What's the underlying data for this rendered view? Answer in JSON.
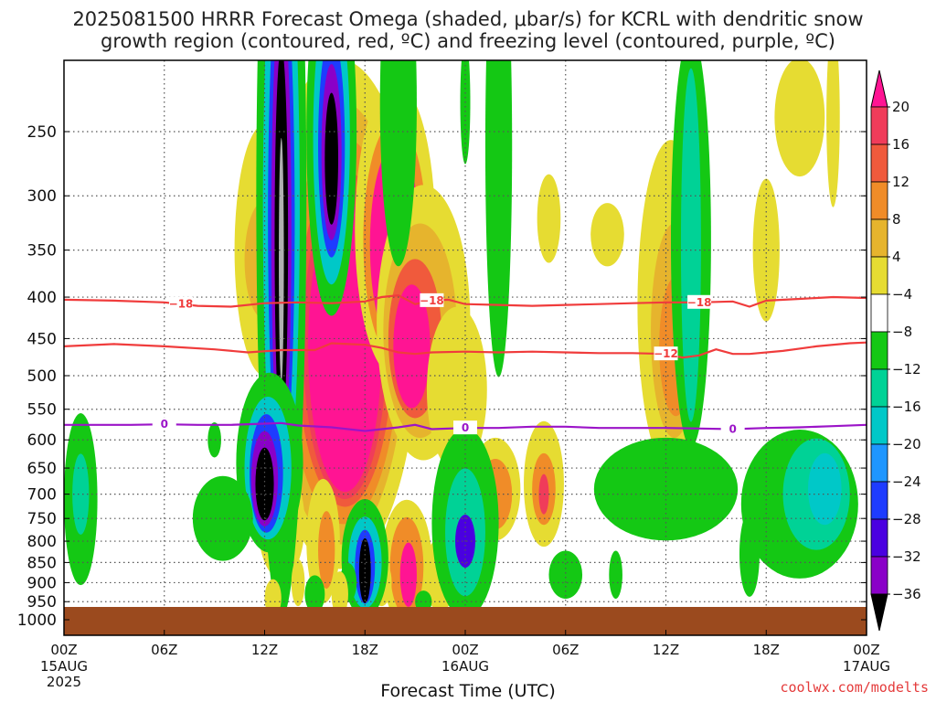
{
  "title": {
    "line1": "2025081500 HRRR Forecast Omega (shaded, μbar/s) for KCRL with dendritic snow",
    "line2": "growth region (contoured, red, ºC) and freezing level (contoured, purple, ºC)"
  },
  "xaxis_title": "Forecast Time (UTC)",
  "credit": "coolwx.com/modelts",
  "colors": {
    "rising_strong": "#000000",
    "rising_32": "#b0b0b0",
    "rising_28": "#8a00c8",
    "rising_24": "#4a00e0",
    "rising_20": "#1e3cff",
    "rising_16": "#1e96ff",
    "rising_12": "#00c8c8",
    "rising_8": "#00d296",
    "rising_4": "#14c814",
    "neutral": "#ffffff",
    "sinking_4": "#e6dc32",
    "sinking_8": "#e6b42d",
    "sinking_12": "#f08c28",
    "sinking_16": "#f05a3c",
    "sinking_20": "#f03c5a",
    "sinking_max": "#ff1493",
    "dgz_contour": "#f03c3c",
    "freezing_contour": "#9b14c8",
    "ground": "#9b4a1e"
  },
  "chart_data": {
    "type": "heatmap",
    "title": "2025081500 HRRR Forecast Omega (shaded, μbar/s) for KCRL with dendritic snow growth region (contoured, red, ºC) and freezing level (contoured, purple, ºC)",
    "xlabel": "Forecast Time (UTC)",
    "ylabel": "",
    "y_scale": "log-pressure",
    "y_reversed": true,
    "ylim": [
      1000,
      200
    ],
    "y_ticks": [
      250,
      300,
      350,
      400,
      450,
      500,
      550,
      600,
      650,
      700,
      750,
      800,
      850,
      900,
      950,
      1000
    ],
    "x_range_hours": [
      0,
      48
    ],
    "x_ticks": [
      {
        "hour": 0,
        "label": "00Z",
        "sub": "15AUG",
        "sub2": "2025"
      },
      {
        "hour": 6,
        "label": "06Z",
        "sub": "",
        "sub2": ""
      },
      {
        "hour": 12,
        "label": "12Z",
        "sub": "",
        "sub2": ""
      },
      {
        "hour": 18,
        "label": "18Z",
        "sub": "",
        "sub2": ""
      },
      {
        "hour": 24,
        "label": "00Z",
        "sub": "16AUG",
        "sub2": ""
      },
      {
        "hour": 30,
        "label": "06Z",
        "sub": "",
        "sub2": ""
      },
      {
        "hour": 36,
        "label": "12Z",
        "sub": "",
        "sub2": ""
      },
      {
        "hour": 42,
        "label": "18Z",
        "sub": "",
        "sub2": ""
      },
      {
        "hour": 48,
        "label": "00Z",
        "sub": "17AUG",
        "sub2": ""
      }
    ],
    "grid": true,
    "colorbar": {
      "labels": [
        "20",
        "16",
        "12",
        "8",
        "4",
        "−4",
        "−8",
        "−12",
        "−16",
        "−20",
        "−24",
        "−28",
        "−32",
        "−36"
      ],
      "units": "μbar/s"
    },
    "contours": [
      {
        "name": "-18",
        "label": "−18",
        "color": "dgz",
        "points": [
          [
            0,
            403
          ],
          [
            3,
            404
          ],
          [
            6,
            406
          ],
          [
            8,
            410
          ],
          [
            10,
            411
          ],
          [
            12,
            407
          ],
          [
            14,
            406
          ],
          [
            16,
            407
          ],
          [
            18,
            405
          ],
          [
            19,
            400
          ],
          [
            20,
            398
          ],
          [
            21,
            408
          ],
          [
            22,
            404
          ],
          [
            23,
            403
          ],
          [
            24,
            408
          ],
          [
            26,
            409
          ],
          [
            28,
            410
          ],
          [
            30,
            409
          ],
          [
            32,
            408
          ],
          [
            34,
            407
          ],
          [
            36,
            406
          ],
          [
            38,
            406
          ],
          [
            40,
            405
          ],
          [
            41,
            411
          ],
          [
            42,
            404
          ],
          [
            44,
            402
          ],
          [
            46,
            400
          ],
          [
            48,
            401
          ]
        ],
        "labels_at_hours": [
          7,
          22,
          38
        ]
      },
      {
        "name": "-12",
        "label": "−12",
        "color": "dgz",
        "points": [
          [
            0,
            460
          ],
          [
            3,
            457
          ],
          [
            6,
            460
          ],
          [
            9,
            464
          ],
          [
            11,
            468
          ],
          [
            13,
            465
          ],
          [
            15,
            465
          ],
          [
            16,
            456
          ],
          [
            17,
            457
          ],
          [
            18,
            458
          ],
          [
            19,
            462
          ],
          [
            20,
            468
          ],
          [
            21,
            470
          ],
          [
            22,
            468
          ],
          [
            24,
            467
          ],
          [
            26,
            468
          ],
          [
            28,
            467
          ],
          [
            30,
            468
          ],
          [
            32,
            469
          ],
          [
            34,
            469
          ],
          [
            36,
            470
          ],
          [
            37,
            475
          ],
          [
            38,
            472
          ],
          [
            39,
            464
          ],
          [
            40,
            470
          ],
          [
            41,
            470
          ],
          [
            43,
            466
          ],
          [
            45,
            460
          ],
          [
            47,
            456
          ],
          [
            48,
            455
          ]
        ],
        "labels_at_hours": [
          36
        ]
      },
      {
        "name": "0",
        "label": "0",
        "color": "freezing",
        "points": [
          [
            0,
            575
          ],
          [
            4,
            575
          ],
          [
            6,
            574
          ],
          [
            8,
            575
          ],
          [
            10,
            575
          ],
          [
            12,
            573
          ],
          [
            13,
            572
          ],
          [
            14,
            576
          ],
          [
            16,
            579
          ],
          [
            18,
            585
          ],
          [
            20,
            579
          ],
          [
            21,
            575
          ],
          [
            22,
            582
          ],
          [
            24,
            580
          ],
          [
            26,
            580
          ],
          [
            28,
            578
          ],
          [
            30,
            578
          ],
          [
            32,
            580
          ],
          [
            34,
            580
          ],
          [
            36,
            580
          ],
          [
            38,
            581
          ],
          [
            40,
            582
          ],
          [
            42,
            580
          ],
          [
            44,
            579
          ],
          [
            46,
            577
          ],
          [
            48,
            575
          ]
        ],
        "labels_at_hours": [
          6,
          24,
          40
        ]
      }
    ]
  }
}
